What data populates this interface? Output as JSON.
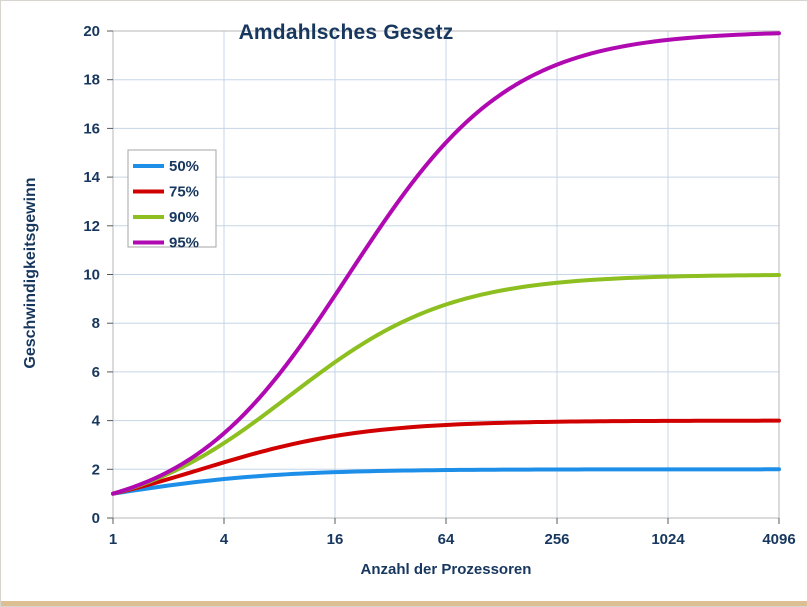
{
  "chart_data": {
    "type": "line",
    "title": "Amdahlsches Gesetz",
    "xlabel": "Anzahl der Prozessoren",
    "ylabel": "Geschwindigkeitsgewinn",
    "x_scale": "log2",
    "xlim": [
      1,
      4096
    ],
    "ylim": [
      0,
      20
    ],
    "grid": true,
    "legend_position": "upper-left-inside",
    "x_ticks": [
      1,
      4,
      16,
      64,
      256,
      1024,
      4096
    ],
    "y_ticks": [
      0,
      2,
      4,
      6,
      8,
      10,
      12,
      14,
      16,
      18,
      20
    ],
    "x": [
      1,
      2,
      4,
      8,
      16,
      32,
      64,
      128,
      256,
      512,
      1024,
      2048,
      4096
    ],
    "series": [
      {
        "name": "50%",
        "parallel_fraction": 0.5,
        "color": "#1e8fe8",
        "values": [
          1.0,
          1.33,
          1.6,
          1.78,
          1.88,
          1.94,
          1.97,
          1.98,
          1.99,
          2.0,
          2.0,
          2.0,
          2.0
        ]
      },
      {
        "name": "75%",
        "parallel_fraction": 0.75,
        "color": "#d10000",
        "values": [
          1.0,
          1.6,
          2.29,
          2.91,
          3.37,
          3.66,
          3.82,
          3.91,
          3.95,
          3.98,
          3.99,
          3.99,
          4.0
        ]
      },
      {
        "name": "90%",
        "parallel_fraction": 0.9,
        "color": "#8cbf1f",
        "values": [
          1.0,
          1.82,
          3.08,
          4.71,
          6.4,
          7.8,
          8.77,
          9.34,
          9.66,
          9.83,
          9.91,
          9.96,
          9.98
        ]
      },
      {
        "name": "95%",
        "parallel_fraction": 0.95,
        "color": "#b109b1",
        "values": [
          1.0,
          1.9,
          3.48,
          5.93,
          9.14,
          12.55,
          15.42,
          17.42,
          18.62,
          19.28,
          19.63,
          19.82,
          19.91
        ]
      }
    ]
  },
  "style": {
    "text_color": "#17375e",
    "grid_color": "#c6d5e8",
    "plot_border_color": "#b7b7b7",
    "tick_color": "#595959",
    "legend_border_color": "#a6a6a6",
    "legend_background": "#ffffff",
    "bottom_strip_color": "#dcbf93"
  }
}
